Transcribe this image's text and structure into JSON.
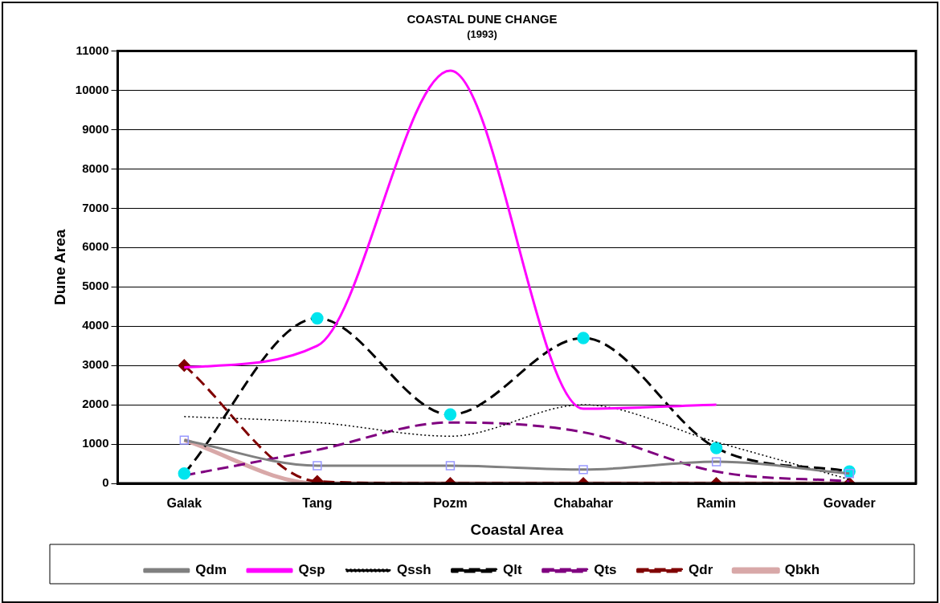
{
  "chart_data": {
    "type": "line",
    "title": "COASTAL DUNE CHANGE",
    "subtitle": "(1993)",
    "xlabel": "Coastal Area",
    "ylabel": "Dune Area",
    "categories": [
      "Galak",
      "Tang",
      "Pozm",
      "Chabahar",
      "Ramin",
      "Govader"
    ],
    "ylim": [
      0,
      11000
    ],
    "yticks": [
      0,
      1000,
      2000,
      3000,
      4000,
      5000,
      6000,
      7000,
      8000,
      9000,
      10000,
      11000
    ],
    "grid": "y",
    "legend": "bottom",
    "series": [
      {
        "name": "Qdm",
        "color": "#808080",
        "values": [
          1100,
          450,
          450,
          350,
          550,
          250
        ],
        "marker": "square",
        "line_style": "solid"
      },
      {
        "name": "Qsp",
        "color": "#ff00ff",
        "values": [
          2950,
          3500,
          10500,
          1900,
          2000,
          null
        ],
        "marker": "none",
        "line_style": "solid"
      },
      {
        "name": "Qssh",
        "color": "#000000",
        "values": [
          1700,
          1550,
          1200,
          2000,
          1050,
          100
        ],
        "marker": "none",
        "line_style": "dotted"
      },
      {
        "name": "Qlt",
        "color": "#000000",
        "values": [
          250,
          4200,
          1750,
          3700,
          900,
          300
        ],
        "marker": "circle",
        "line_style": "dashed"
      },
      {
        "name": "Qts",
        "color": "#800080",
        "values": [
          200,
          850,
          1550,
          1300,
          300,
          50
        ],
        "marker": "none",
        "line_style": "dashed"
      },
      {
        "name": "Qdr",
        "color": "#800000",
        "values": [
          3000,
          50,
          0,
          0,
          0,
          0
        ],
        "marker": "diamond",
        "line_style": "dashed"
      },
      {
        "name": "Qbkh",
        "color": "#d8a8a8",
        "values": [
          1100,
          0,
          0,
          0,
          0,
          0
        ],
        "marker": "none",
        "line_style": "solid"
      }
    ]
  }
}
